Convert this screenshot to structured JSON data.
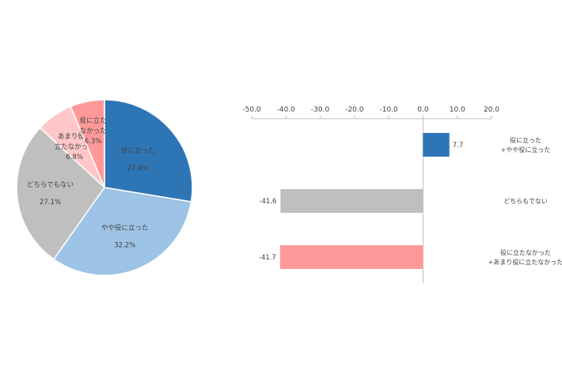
{
  "chart_data": [
    {
      "type": "pie",
      "slices": [
        {
          "label_lines": [
            "役に立った"
          ],
          "value": 27.6,
          "value_label": "27.6%",
          "color": "#2e75b6"
        },
        {
          "label_lines": [
            "やや役に立った"
          ],
          "value": 32.2,
          "value_label": "32.2%",
          "color": "#9dc3e6"
        },
        {
          "label_lines": [
            "どちらでもない"
          ],
          "value": 27.1,
          "value_label": "27.1%",
          "color": "#bfbfbf"
        },
        {
          "label_lines": [
            "あまり役に",
            "立たなかった"
          ],
          "value": 6.8,
          "value_label": "6.8%",
          "color": "#ffc7c7"
        },
        {
          "label_lines": [
            "役に立た",
            "なかった"
          ],
          "value": 6.3,
          "value_label": "6.3%",
          "color": "#ff9999"
        }
      ]
    },
    {
      "type": "bar",
      "orientation": "horizontal",
      "xlim": [
        -50,
        20
      ],
      "ticks": [
        -50,
        -40,
        -30,
        -20,
        -10,
        0,
        10,
        20
      ],
      "tick_labels": [
        "-50.0",
        "-40.0",
        "-30.0",
        "-20.0",
        "-10.0",
        "0.0",
        "10.0",
        "20.0"
      ],
      "bars": [
        {
          "category_lines": [
            "役に立った",
            "+やや役に立った"
          ],
          "value": 7.7,
          "value_label": "7.7",
          "color": "#2e75b6"
        },
        {
          "category_lines": [
            "どちらもでない"
          ],
          "value": -41.6,
          "value_label": "-41.6",
          "color": "#bfbfbf"
        },
        {
          "category_lines": [
            "役に立たなかった",
            "+あまり役に立たなかった"
          ],
          "value": -41.7,
          "value_label": "-41.7",
          "color": "#ff9999"
        }
      ]
    }
  ]
}
